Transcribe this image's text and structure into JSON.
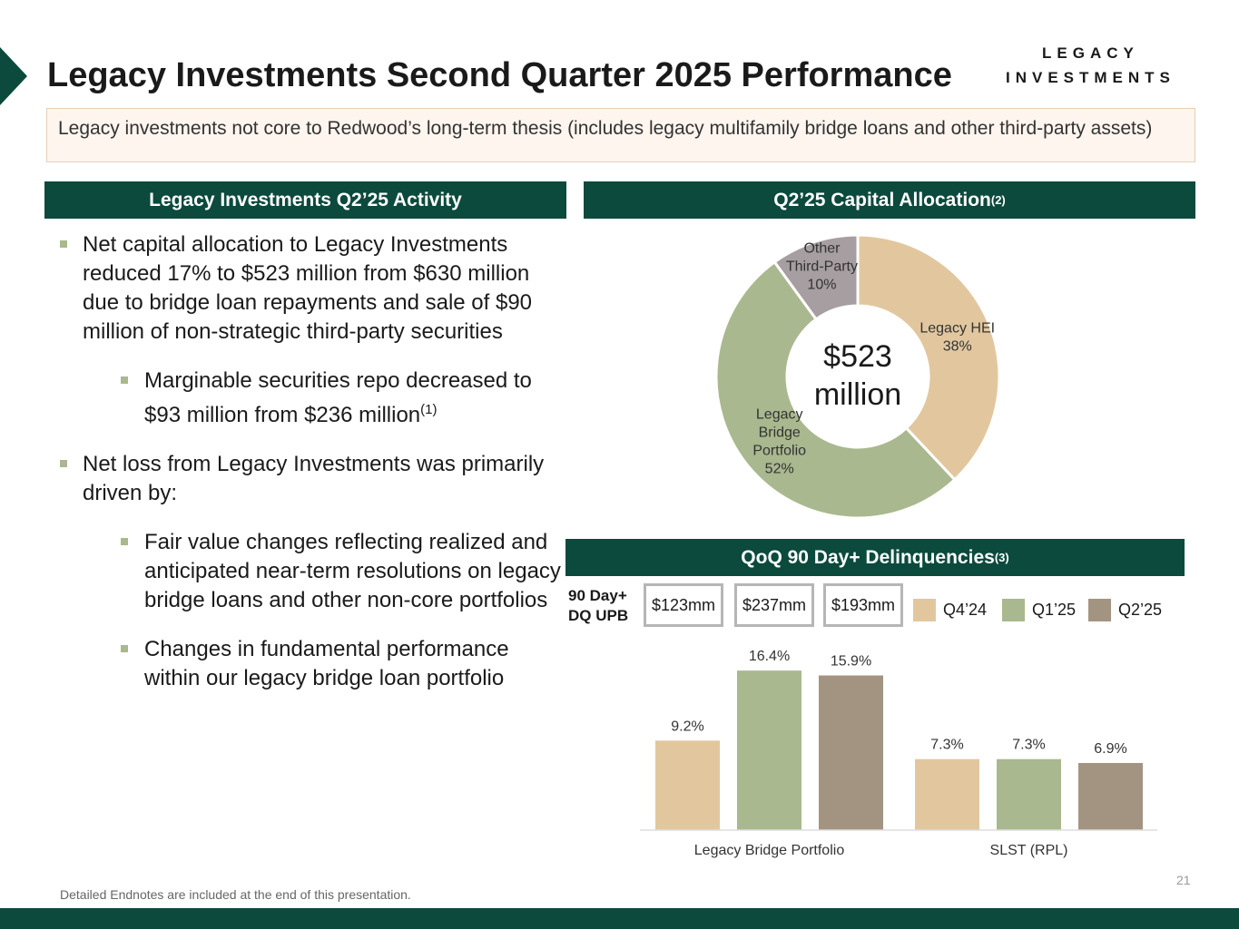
{
  "page": {
    "title": "Legacy Investments Second Quarter 2025 Performance",
    "logo": {
      "line1": "LEGACY",
      "line2": "INVESTMENTS"
    },
    "intro": "Legacy investments not core to Redwood’s long-term thesis (includes legacy multifamily bridge loans and other third-party assets)",
    "endnote": "Detailed Endnotes are included at the end of this presentation.",
    "page_number": "21"
  },
  "colors": {
    "brand_green": "#0b4a3d",
    "tan": "#e2c79e",
    "sage": "#a9b88e",
    "taupe": "#a39481",
    "gray_slice": "#a69ea1"
  },
  "activity": {
    "header": "Legacy Investments Q2’25 Activity",
    "bullet1": "Net capital allocation to Legacy Investments reduced 17% to $523 million from $630 million due to bridge loan repayments and sale of $90 million of non-strategic third-party securities",
    "bullet1_sub1": "Marginable securities repo decreased to $93 million from $236 million",
    "bullet1_sub1_note": "(1)",
    "bullet2": "Net loss from Legacy Investments was primarily driven by:",
    "bullet2_sub1": "Fair value changes reflecting realized and anticipated near-term resolutions on legacy bridge loans and other non-core portfolios",
    "bullet2_sub2": "Changes in fundamental performance within our legacy bridge loan portfolio"
  },
  "allocation": {
    "header": "Q2’25 Capital Allocation",
    "header_note": "(2)",
    "center_line1": "$523",
    "center_line2": "million"
  },
  "delinquency": {
    "header": "QoQ 90 Day+ Delinquencies",
    "header_note": "(3)",
    "upb_label_line1": "90 Day+",
    "upb_label_line2": "DQ UPB",
    "upb_values": [
      "$123mm",
      "$237mm",
      "$193mm"
    ]
  },
  "chart_data": [
    {
      "type": "pie",
      "title": "Q2’25 Capital Allocation",
      "center_label": "$523 million",
      "slices": [
        {
          "label": "Legacy HEI",
          "value": 38,
          "value_label": "38%",
          "color": "#e2c79e"
        },
        {
          "label": "Legacy Bridge Portfolio",
          "value": 52,
          "value_label": "52%",
          "color": "#a9b88e"
        },
        {
          "label": "Other Third-Party",
          "value": 10,
          "value_label": "10%",
          "color": "#a69ea1"
        }
      ]
    },
    {
      "type": "bar",
      "title": "QoQ 90 Day+ Delinquencies",
      "categories": [
        "Legacy Bridge Portfolio",
        "SLST (RPL)"
      ],
      "series": [
        {
          "name": "Q4’24",
          "values": [
            9.2,
            7.3
          ],
          "labels": [
            "9.2%",
            "7.3%"
          ],
          "color": "#e2c79e"
        },
        {
          "name": "Q1’25",
          "values": [
            16.4,
            7.3
          ],
          "labels": [
            "16.4%",
            "7.3%"
          ],
          "color": "#a9b88e"
        },
        {
          "name": "Q2’25",
          "values": [
            15.9,
            6.9
          ],
          "labels": [
            "15.9%",
            "6.9%"
          ],
          "color": "#a39481"
        }
      ],
      "ylim": [
        0,
        18
      ],
      "xlabel": "",
      "ylabel": ""
    }
  ]
}
